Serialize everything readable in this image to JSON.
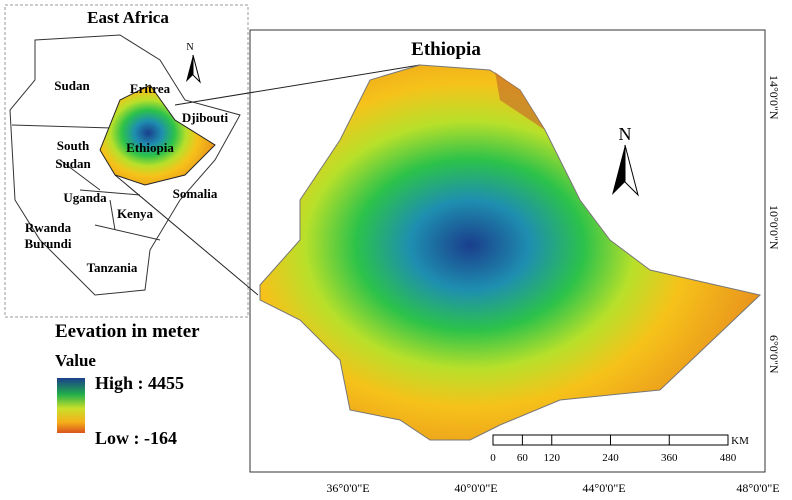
{
  "inset": {
    "title": "East Africa",
    "north": "N",
    "labels": [
      "Sudan",
      "Eritrea",
      "Djibouti",
      "South",
      "Sudan",
      "Ethiopia",
      "Uganda",
      "Somalia",
      "Kenya",
      "Rwanda",
      "Burundi",
      "Tanzania"
    ]
  },
  "main": {
    "title": "Ethiopia",
    "north": "N",
    "scale_unit": "KM",
    "scale_ticks": [
      0,
      60,
      120,
      240,
      360,
      480
    ],
    "x_labels": [
      "36°0'0\"E",
      "40°0'0\"E",
      "44°0'0\"E",
      "48°0'0\"E"
    ],
    "y_labels": [
      "14°0'0\"N",
      "10°0'0\"N",
      "6°0'0\"N"
    ]
  },
  "legend": {
    "title": "Eevation in meter",
    "subtitle": "Value",
    "high": "High : 4455",
    "low": "Low : -164"
  }
}
